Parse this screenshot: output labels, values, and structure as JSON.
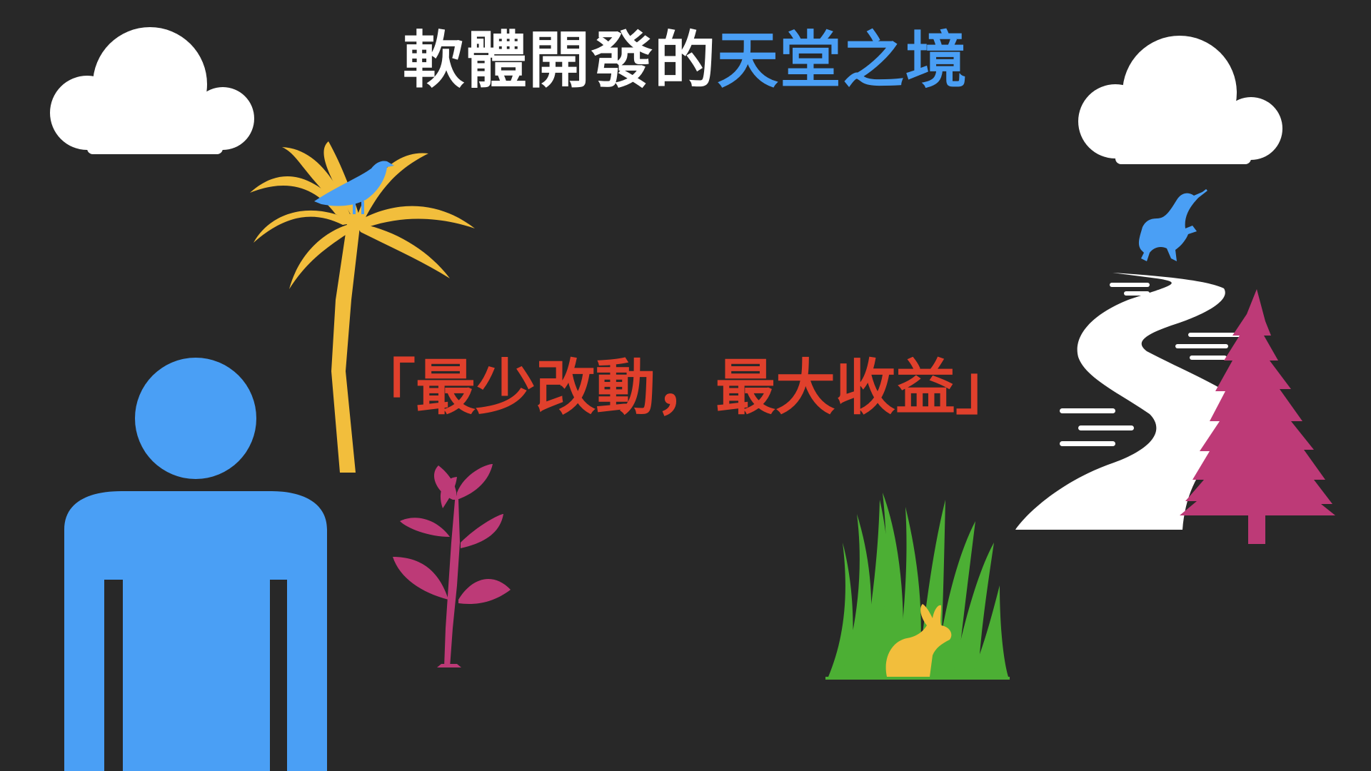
{
  "title": {
    "part1": "軟體開發的",
    "part2": "天堂之境"
  },
  "slogan": "「最少改動，最大收益」",
  "colors": {
    "background": "#282828",
    "title_white": "#ffffff",
    "title_accent": "#4a9ff5",
    "slogan": "#e0402c",
    "person": "#4a9ff5",
    "palm": "#f2be3c",
    "bird": "#4a9ff5",
    "plant": "#bd3a77",
    "grass": "#4caf34",
    "rabbit": "#f2be3c",
    "unicorn": "#4a9ff5",
    "tree": "#bd3a77",
    "cloud": "#ffffff",
    "path": "#ffffff"
  },
  "icons": [
    "cloud-icon",
    "palm-tree-icon",
    "bird-icon",
    "person-icon",
    "sprout-plant-icon",
    "grass-icon",
    "rabbit-icon",
    "winding-path-icon",
    "unicorn-icon",
    "pine-tree-icon"
  ]
}
